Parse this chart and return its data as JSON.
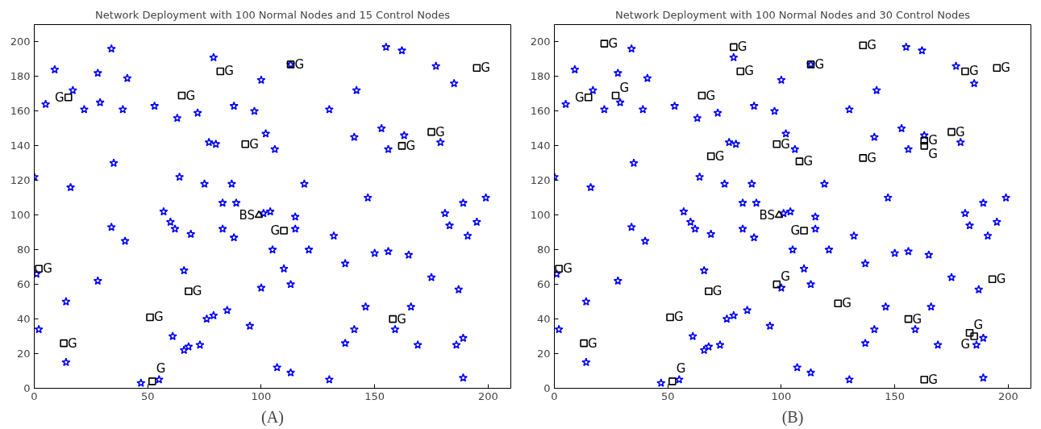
{
  "chart_data": [
    {
      "type": "scatter",
      "title": "Network Deployment with 100 Normal Nodes and 15 Control Nodes",
      "annotations": [
        "(A)"
      ],
      "xlim": [
        0,
        210
      ],
      "ylim": [
        0,
        210
      ],
      "xticks": [
        0,
        50,
        100,
        150,
        200
      ],
      "yticks": [
        0,
        20,
        40,
        60,
        80,
        100,
        120,
        140,
        160,
        180,
        200
      ],
      "grid": false,
      "series": [
        {
          "color": "#0000ff",
          "marker": "star",
          "x": [
            34,
            9,
            28,
            41,
            5,
            17,
            29,
            22,
            39,
            53,
            63,
            79,
            72,
            88,
            97,
            100,
            77,
            80,
            106,
            102,
            113,
            130,
            142,
            155,
            162,
            153,
            156,
            163,
            177,
            185,
            179,
            141,
            0,
            16,
            35,
            64,
            75,
            87,
            119,
            147,
            199,
            189,
            181,
            183,
            195,
            191,
            34,
            40,
            57,
            60,
            62,
            69,
            83,
            89,
            83,
            88,
            104,
            115,
            115,
            121,
            105,
            110,
            113,
            100,
            132,
            137,
            150,
            156,
            165,
            175,
            187,
            66,
            28,
            1,
            14,
            2,
            14,
            47,
            55,
            61,
            66,
            68,
            73,
            76,
            79,
            85,
            95,
            107,
            113,
            130,
            137,
            141,
            146,
            159,
            166,
            169,
            186,
            189,
            189,
            101
          ],
          "values": [
            196,
            184,
            182,
            179,
            164,
            172,
            165,
            161,
            161,
            163,
            156,
            191,
            159,
            163,
            160,
            178,
            142,
            141,
            138,
            147,
            187,
            161,
            172,
            197,
            195,
            150,
            138,
            146,
            186,
            176,
            142,
            145,
            122,
            116,
            130,
            122,
            118,
            118,
            118,
            110,
            110,
            107,
            101,
            94,
            96,
            88,
            93,
            85,
            102,
            96,
            92,
            89,
            107,
            107,
            92,
            87,
            102,
            99,
            92,
            80,
            80,
            69,
            60,
            58,
            88,
            72,
            78,
            79,
            77,
            64,
            57,
            68,
            62,
            66,
            50,
            34,
            15,
            3,
            5,
            30,
            22,
            24,
            25,
            40,
            42,
            45,
            36,
            12,
            9,
            5,
            26,
            34,
            47,
            34,
            47,
            25,
            25,
            29,
            6,
            101
          ]
        },
        {
          "color": "#000000",
          "marker": "square",
          "x": [
            15,
            65,
            82,
            113,
            93,
            195,
            175,
            162,
            2,
            68,
            51,
            13,
            52,
            158,
            110
          ],
          "values": [
            168,
            169,
            183,
            187,
            141,
            185,
            148,
            140,
            69,
            56,
            41,
            26,
            4,
            40,
            91
          ],
          "value_labels": [
            "G",
            "G",
            "G",
            "G",
            "G",
            "G",
            "G",
            "G",
            "G",
            "G",
            "G",
            "G",
            "G",
            "G",
            "G"
          ]
        },
        {
          "color": "#000000",
          "marker": "triangle",
          "x": [
            99
          ],
          "values": [
            100
          ],
          "value_labels": [
            "BS"
          ]
        }
      ]
    },
    {
      "type": "scatter",
      "title": "Network Deployment with 100 Normal Nodes and 30 Control Nodes",
      "annotations": [
        "(B)"
      ],
      "xlim": [
        0,
        210
      ],
      "ylim": [
        0,
        210
      ],
      "xticks": [
        0,
        50,
        100,
        150,
        200
      ],
      "yticks": [
        0,
        20,
        40,
        60,
        80,
        100,
        120,
        140,
        160,
        180,
        200
      ],
      "grid": false,
      "series": [
        {
          "color": "#0000ff",
          "marker": "star",
          "x": [
            34,
            9,
            28,
            41,
            5,
            17,
            29,
            22,
            39,
            53,
            63,
            79,
            72,
            88,
            97,
            100,
            77,
            80,
            106,
            102,
            113,
            130,
            142,
            155,
            162,
            153,
            156,
            163,
            177,
            185,
            179,
            141,
            0,
            16,
            35,
            64,
            75,
            87,
            119,
            147,
            199,
            189,
            181,
            183,
            195,
            191,
            34,
            40,
            57,
            60,
            62,
            69,
            83,
            89,
            83,
            88,
            104,
            115,
            115,
            121,
            105,
            110,
            113,
            100,
            132,
            137,
            150,
            156,
            165,
            175,
            187,
            66,
            28,
            1,
            14,
            2,
            14,
            47,
            55,
            61,
            66,
            68,
            73,
            76,
            79,
            85,
            95,
            107,
            113,
            130,
            137,
            141,
            146,
            159,
            166,
            169,
            186,
            189,
            189,
            101
          ],
          "values": [
            196,
            184,
            182,
            179,
            164,
            172,
            165,
            161,
            161,
            163,
            156,
            191,
            159,
            163,
            160,
            178,
            142,
            141,
            138,
            147,
            187,
            161,
            172,
            197,
            195,
            150,
            138,
            146,
            186,
            176,
            142,
            145,
            122,
            116,
            130,
            122,
            118,
            118,
            118,
            110,
            110,
            107,
            101,
            94,
            96,
            88,
            93,
            85,
            102,
            96,
            92,
            89,
            107,
            107,
            92,
            87,
            102,
            99,
            92,
            80,
            80,
            69,
            60,
            58,
            88,
            72,
            78,
            79,
            77,
            64,
            57,
            68,
            62,
            66,
            50,
            34,
            15,
            3,
            5,
            30,
            22,
            24,
            25,
            40,
            42,
            45,
            36,
            12,
            9,
            5,
            26,
            34,
            47,
            34,
            47,
            25,
            25,
            29,
            6,
            101
          ]
        },
        {
          "color": "#000000",
          "marker": "square",
          "x": [
            22,
            79,
            136,
            113,
            82,
            15,
            27,
            65,
            181,
            195,
            175,
            98,
            108,
            69,
            136,
            163,
            163,
            2,
            193,
            68,
            98,
            125,
            110,
            51,
            156,
            13,
            52,
            163,
            183,
            185
          ],
          "values": [
            199,
            197,
            198,
            187,
            183,
            168,
            169,
            169,
            183,
            185,
            148,
            141,
            131,
            134,
            133,
            143,
            140,
            69,
            63,
            56,
            60,
            49,
            91,
            41,
            40,
            26,
            4,
            5,
            32,
            30
          ],
          "value_labels": [
            "G",
            "G",
            "G",
            "G",
            "G",
            "G",
            "G",
            "G",
            "G",
            "G",
            "G",
            "G",
            "G",
            "G",
            "G",
            "G",
            "G",
            "G",
            "G",
            "G",
            "G",
            "G",
            "G",
            "G",
            "G",
            "G",
            "G",
            "G",
            "G",
            "G"
          ]
        },
        {
          "color": "#000000",
          "marker": "triangle",
          "x": [
            99
          ],
          "values": [
            100
          ],
          "value_labels": [
            "BS"
          ]
        }
      ]
    }
  ]
}
